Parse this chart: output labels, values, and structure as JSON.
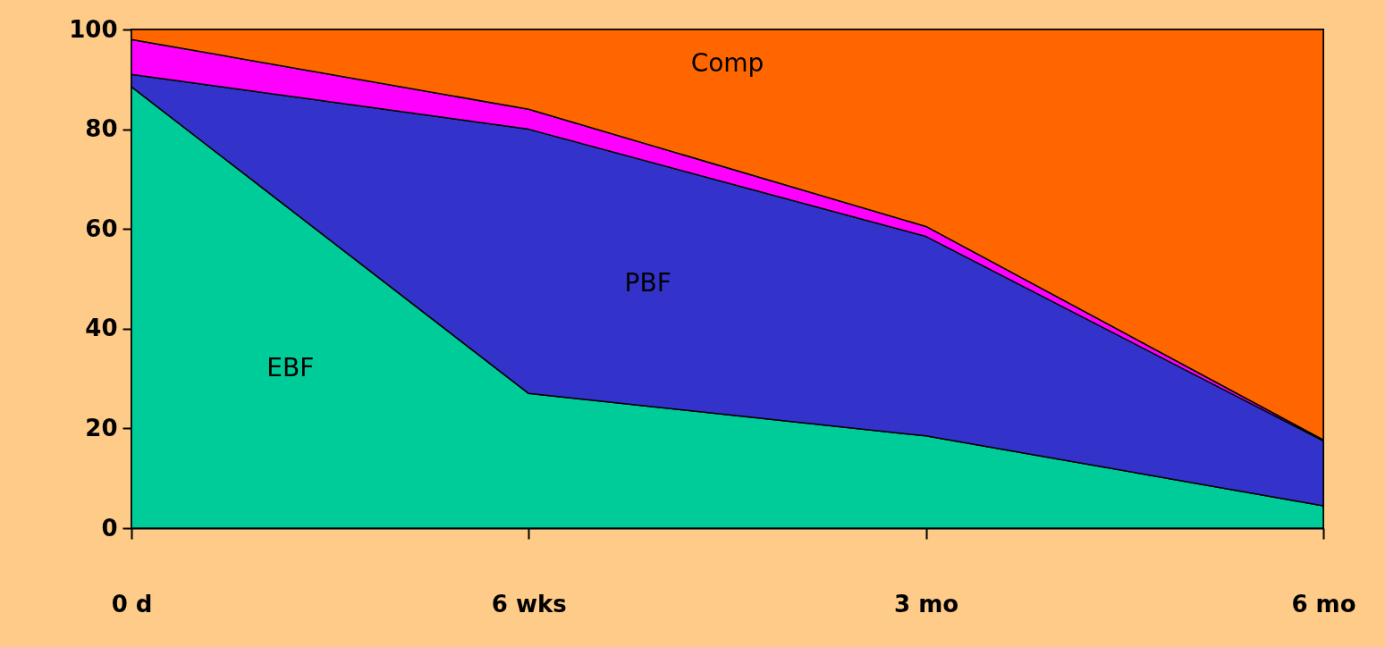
{
  "chart_data": {
    "type": "area",
    "stacked": true,
    "categories": [
      "0 d",
      "6 wks",
      "3 mo",
      "6 mo"
    ],
    "series": [
      {
        "name": "EBF",
        "color": "#00cc99",
        "values": [
          88.5,
          27,
          18.5,
          4.5
        ]
      },
      {
        "name": "PBF",
        "color": "#3333cc",
        "values": [
          2.5,
          53,
          40,
          13
        ]
      },
      {
        "color": "#ff00ff",
        "values": [
          7,
          4,
          2,
          0.2
        ]
      },
      {
        "name": "Comp",
        "color": "#ff6600",
        "values": [
          2,
          16,
          39.5,
          82.3
        ]
      }
    ],
    "ylim": [
      0,
      100
    ],
    "yticks": [
      0,
      20,
      40,
      60,
      80,
      100
    ],
    "grid": false,
    "legend": false
  }
}
